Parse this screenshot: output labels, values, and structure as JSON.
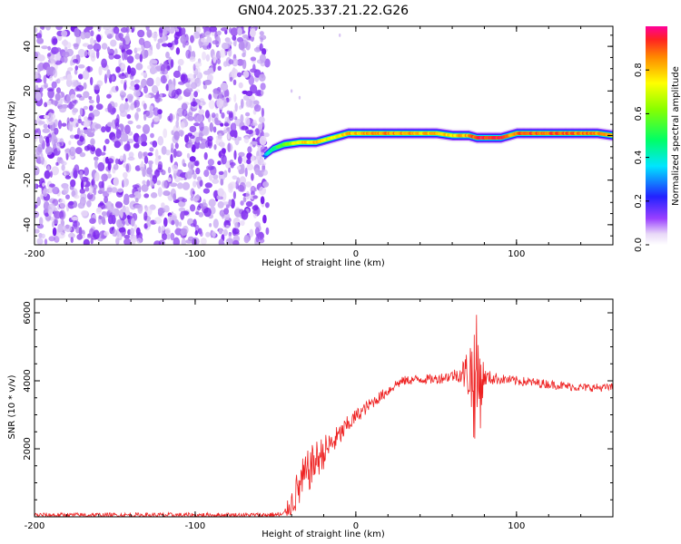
{
  "title": "GN04.2025.337.21.22.G26",
  "chart_data": [
    {
      "type": "heatmap",
      "title": "GN04.2025.337.21.22.G26",
      "xlabel": "Height of straight line (km)",
      "ylabel": "Frequency (Hz)",
      "xlim": [
        -200,
        160
      ],
      "ylim": [
        -49,
        49
      ],
      "xticks": [
        -200,
        -100,
        0,
        100
      ],
      "yticks": [
        -40,
        -20,
        0,
        20,
        40
      ],
      "noise_region_x": [
        -200,
        -55
      ],
      "tone_track": {
        "x": [
          -57,
          -52,
          -45,
          -35,
          -25,
          -15,
          -5,
          0,
          20,
          50,
          60,
          70,
          75,
          80,
          90,
          95,
          100,
          110,
          130,
          150,
          160
        ],
        "freq": [
          -9,
          -6,
          -4,
          -3,
          -3,
          -1,
          1,
          1,
          1,
          1,
          0,
          0,
          -1,
          -1,
          -1,
          0,
          1,
          1,
          1,
          1,
          0
        ],
        "amplitude": [
          0.3,
          0.45,
          0.6,
          0.75,
          0.78,
          0.7,
          0.82,
          0.8,
          0.85,
          0.8,
          0.78,
          0.82,
          0.95,
          0.95,
          0.95,
          0.85,
          0.88,
          0.9,
          0.88,
          0.85,
          0.82
        ]
      },
      "colorbar": {
        "label": "Normalized spectral amplitude",
        "range": [
          0,
          1
        ],
        "ticks": [
          0.0,
          0.2,
          0.4,
          0.6,
          0.8
        ]
      }
    },
    {
      "type": "line",
      "xlabel": "Height of straight line (km)",
      "ylabel": "SNR (10 * v/v)",
      "xlim": [
        -200,
        160
      ],
      "ylim": [
        0,
        6400
      ],
      "xticks": [
        -200,
        -100,
        0,
        100
      ],
      "yticks": [
        2000,
        4000,
        6000
      ],
      "color": "#ee2222",
      "series": [
        {
          "name": "SNR",
          "x": [
            -200,
            -150,
            -100,
            -60,
            -45,
            -40,
            -35,
            -30,
            -25,
            -20,
            -15,
            -10,
            -5,
            0,
            10,
            20,
            25,
            30,
            40,
            50,
            60,
            65,
            70,
            72,
            75,
            78,
            80,
            90,
            100,
            110,
            120,
            130,
            140,
            150,
            160
          ],
          "y": [
            50,
            50,
            50,
            50,
            60,
            400,
            900,
            1300,
            1650,
            1900,
            2150,
            2400,
            2700,
            2950,
            3350,
            3700,
            3900,
            4000,
            4050,
            4050,
            4150,
            4200,
            4250,
            4100,
            4000,
            4000,
            4100,
            4050,
            4000,
            3950,
            3900,
            3850,
            3800,
            3800,
            3800
          ],
          "noise": [
            70,
            70,
            70,
            70,
            100,
            400,
            700,
            650,
            600,
            500,
            400,
            330,
            280,
            220,
            180,
            160,
            150,
            140,
            140,
            150,
            180,
            250,
            800,
            1600,
            2000,
            1300,
            250,
            150,
            140,
            140,
            130,
            130,
            120,
            120,
            120
          ]
        }
      ]
    }
  ]
}
